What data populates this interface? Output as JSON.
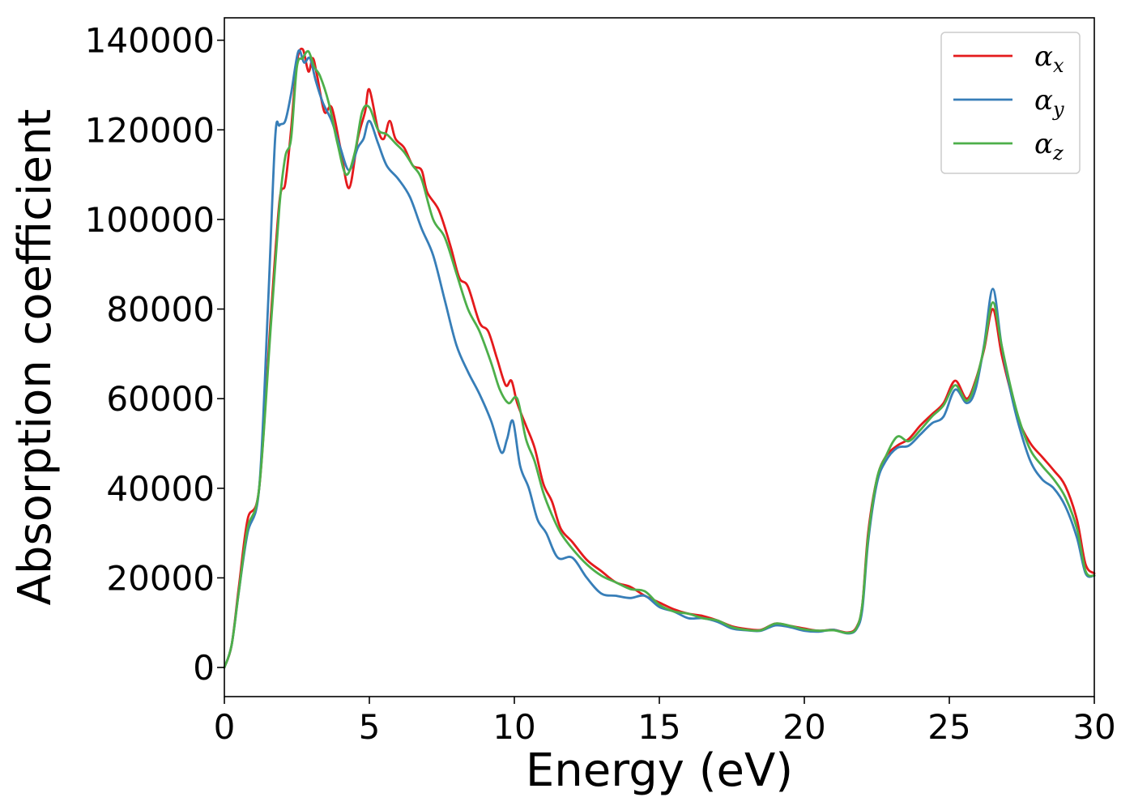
{
  "chart_data": {
    "type": "line",
    "xlabel": "Energy (eV)",
    "ylabel": "Absorption coefficient",
    "xlim": [
      0,
      30
    ],
    "ylim": [
      -6500,
      145000
    ],
    "xticks": [
      0,
      5,
      10,
      15,
      20,
      25,
      30
    ],
    "xtick_labels": [
      "0",
      "5",
      "10",
      "15",
      "20",
      "25",
      "30"
    ],
    "yticks": [
      0,
      20000,
      40000,
      60000,
      80000,
      100000,
      120000,
      140000
    ],
    "ytick_labels": [
      "0",
      "20000",
      "40000",
      "60000",
      "80000",
      "100000",
      "120000",
      "140000"
    ],
    "grid": false,
    "legend_position": "top-right",
    "series": [
      {
        "name": "α_x",
        "label_main": "α",
        "label_sub": "x",
        "color": "#e41a1c",
        "x": [
          0,
          0.25,
          0.5,
          0.8,
          1.2,
          1.6,
          1.9,
          2.1,
          2.3,
          2.5,
          2.7,
          2.9,
          3.05,
          3.2,
          3.45,
          3.7,
          4.0,
          4.3,
          4.6,
          4.85,
          5.0,
          5.3,
          5.5,
          5.7,
          5.9,
          6.2,
          6.5,
          6.8,
          7.0,
          7.4,
          7.8,
          8.1,
          8.4,
          8.8,
          9.1,
          9.4,
          9.7,
          9.9,
          10.1,
          10.4,
          10.7,
          11.0,
          11.3,
          11.6,
          12.0,
          12.5,
          13.0,
          13.5,
          14.0,
          14.5,
          15.0,
          15.5,
          16.0,
          16.5,
          17.0,
          17.5,
          18.0,
          18.5,
          19.0,
          19.5,
          20.0,
          20.5,
          21.0,
          21.5,
          21.8,
          22.0,
          22.2,
          22.5,
          22.8,
          23.2,
          23.6,
          24.0,
          24.4,
          24.8,
          25.2,
          25.6,
          25.9,
          26.2,
          26.5,
          26.8,
          27.1,
          27.4,
          27.8,
          28.2,
          28.6,
          29.0,
          29.4,
          29.7,
          30.0
        ],
        "y": [
          0,
          5000,
          18000,
          33000,
          40000,
          78000,
          104000,
          108000,
          120000,
          135000,
          138000,
          133000,
          136000,
          132000,
          124000,
          125000,
          116000,
          107000,
          118000,
          124000,
          129000,
          120000,
          118000,
          122000,
          118000,
          116000,
          112000,
          111000,
          106000,
          102000,
          94000,
          87000,
          85000,
          77000,
          75000,
          69000,
          63000,
          64000,
          59000,
          54000,
          49000,
          41000,
          37000,
          31000,
          28000,
          24000,
          21500,
          19000,
          18000,
          16000,
          14500,
          13000,
          12000,
          11500,
          10500,
          9200,
          8600,
          8400,
          9800,
          9300,
          8700,
          8200,
          8400,
          7800,
          9000,
          14000,
          30000,
          42000,
          47000,
          49500,
          51000,
          54000,
          56500,
          59000,
          64000,
          60000,
          64000,
          71000,
          80000,
          70000,
          62000,
          55000,
          50000,
          47000,
          44000,
          40500,
          33000,
          23000,
          21000
        ]
      },
      {
        "name": "α_y",
        "label_main": "α",
        "label_sub": "y",
        "color": "#377eb8",
        "x": [
          0,
          0.25,
          0.5,
          0.8,
          1.2,
          1.5,
          1.75,
          1.9,
          2.1,
          2.3,
          2.55,
          2.75,
          2.95,
          3.15,
          3.4,
          3.7,
          4.0,
          4.3,
          4.6,
          4.8,
          5.0,
          5.3,
          5.6,
          6.0,
          6.4,
          6.8,
          7.2,
          7.6,
          8.0,
          8.4,
          8.8,
          9.2,
          9.55,
          9.75,
          9.95,
          10.2,
          10.5,
          10.8,
          11.1,
          11.5,
          12.0,
          12.5,
          13.0,
          13.5,
          14.0,
          14.5,
          15.0,
          15.5,
          16.0,
          16.5,
          17.0,
          17.5,
          18.0,
          18.5,
          19.0,
          19.5,
          20.0,
          20.5,
          21.0,
          21.5,
          21.8,
          22.0,
          22.2,
          22.5,
          22.8,
          23.2,
          23.6,
          24.0,
          24.4,
          24.8,
          25.2,
          25.6,
          25.9,
          26.2,
          26.5,
          26.8,
          27.1,
          27.4,
          27.8,
          28.2,
          28.6,
          29.0,
          29.4,
          29.7,
          30.0
        ],
        "y": [
          0,
          5000,
          17000,
          30000,
          40000,
          80000,
          118000,
          121000,
          122000,
          128000,
          137500,
          135000,
          136000,
          131000,
          126000,
          122000,
          116000,
          111000,
          116000,
          118000,
          122000,
          117000,
          112000,
          109000,
          105000,
          98000,
          92000,
          82000,
          72000,
          66000,
          61000,
          55000,
          48000,
          51000,
          55000,
          45000,
          40000,
          33000,
          30000,
          24500,
          24500,
          20000,
          16500,
          16000,
          15500,
          16000,
          13500,
          12500,
          11000,
          11000,
          10200,
          8700,
          8300,
          8200,
          9400,
          9000,
          8200,
          8000,
          8400,
          7600,
          8600,
          13000,
          28000,
          41000,
          46000,
          49000,
          49500,
          52000,
          54500,
          56000,
          62000,
          59000,
          62000,
          72000,
          84500,
          72000,
          62000,
          54000,
          46000,
          42000,
          40000,
          36000,
          29000,
          21000,
          20500
        ]
      },
      {
        "name": "α_z",
        "label_main": "α",
        "label_sub": "z",
        "color": "#4daf4a",
        "x": [
          0,
          0.25,
          0.5,
          0.8,
          1.2,
          1.6,
          1.9,
          2.1,
          2.3,
          2.5,
          2.7,
          2.9,
          3.1,
          3.3,
          3.6,
          3.9,
          4.2,
          4.5,
          4.75,
          5.0,
          5.3,
          5.6,
          5.9,
          6.2,
          6.5,
          6.8,
          7.2,
          7.6,
          8.0,
          8.4,
          8.8,
          9.2,
          9.5,
          9.8,
          10.1,
          10.4,
          10.7,
          11.0,
          11.3,
          11.6,
          12.0,
          12.5,
          13.0,
          13.5,
          14.0,
          14.5,
          15.0,
          15.5,
          16.0,
          16.5,
          17.0,
          17.5,
          18.0,
          18.5,
          19.0,
          19.5,
          20.0,
          20.5,
          21.0,
          21.5,
          21.8,
          22.0,
          22.2,
          22.5,
          22.8,
          23.2,
          23.6,
          24.0,
          24.4,
          24.8,
          25.2,
          25.6,
          25.9,
          26.2,
          26.5,
          26.8,
          27.1,
          27.4,
          27.8,
          28.2,
          28.6,
          29.0,
          29.4,
          29.7,
          30.0
        ],
        "y": [
          0,
          5000,
          17000,
          31000,
          40000,
          76000,
          103000,
          114000,
          118000,
          134000,
          136000,
          137500,
          134000,
          132000,
          126000,
          117000,
          110000,
          115000,
          124000,
          125000,
          120000,
          119000,
          117000,
          115000,
          112000,
          109000,
          100000,
          96000,
          88000,
          80000,
          75000,
          68000,
          62000,
          59000,
          60000,
          51000,
          46000,
          39000,
          34000,
          30000,
          26500,
          23000,
          20500,
          19000,
          17500,
          17000,
          14000,
          12500,
          12000,
          11000,
          10500,
          9000,
          8400,
          8300,
          9800,
          9300,
          8500,
          8200,
          8300,
          7700,
          8800,
          14000,
          29000,
          42000,
          47000,
          51500,
          50500,
          53000,
          56000,
          58500,
          63000,
          59500,
          63500,
          71500,
          81500,
          72000,
          63000,
          55500,
          48500,
          45000,
          42000,
          38000,
          31000,
          21500,
          20500
        ]
      }
    ]
  }
}
